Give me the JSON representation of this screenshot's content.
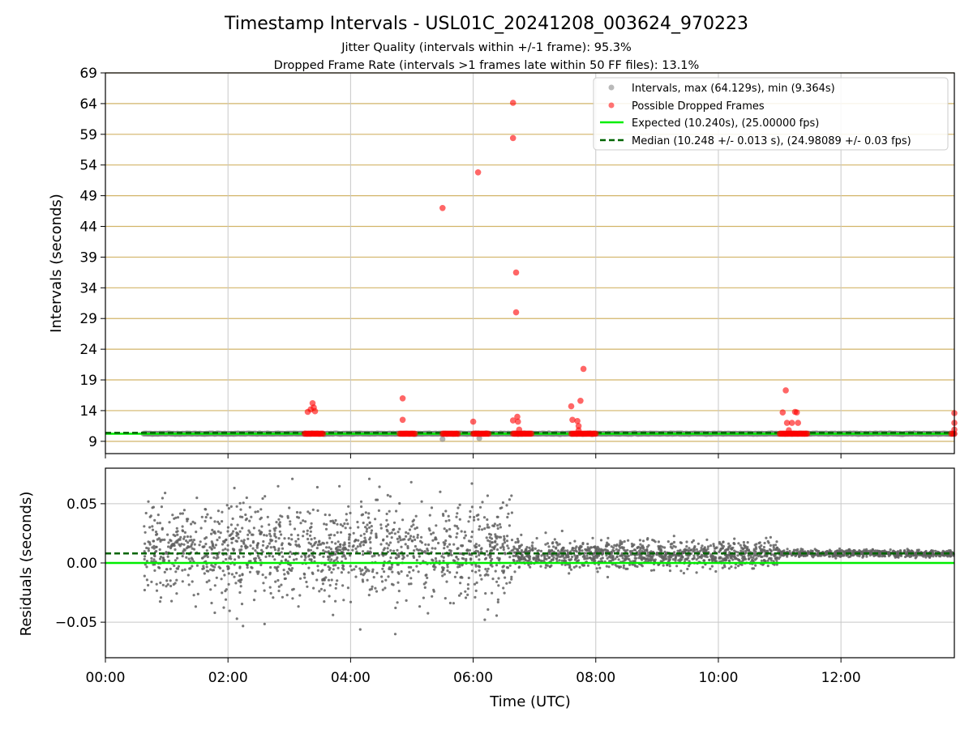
{
  "title": "Timestamp Intervals - USL01C_20241208_003624_970223",
  "subtitle_line1": "Jitter Quality (intervals within +/-1 frame): 95.3%",
  "subtitle_line2": "Dropped Frame Rate (intervals >1 frames late within 50 FF files): 13.1%",
  "colors": {
    "intervals": "#808080",
    "dropped": "#ff0000",
    "expected": "#00ee00",
    "median": "#006400",
    "hgrid_top": "#d2b468",
    "grid": "#c8c8c8"
  },
  "chart_data": [
    {
      "type": "scatter",
      "ylabel": "Intervals (seconds)",
      "ylim": [
        7,
        69
      ],
      "yticks": [
        9,
        14,
        19,
        24,
        29,
        34,
        39,
        44,
        49,
        54,
        59,
        64,
        69
      ],
      "xlim_hours": [
        0.0,
        13.85
      ],
      "xticks_hours": [
        0,
        2,
        4,
        6,
        8,
        10,
        12
      ],
      "grid": "on",
      "legend_placement": "top-right",
      "series": [
        {
          "name": "Intervals, max (64.129s), min (9.364s)",
          "kind": "scatter",
          "baseline_value": 10.24,
          "x_range_hours": [
            0.62,
            13.85
          ],
          "low_outliers": [
            [
              5.5,
              9.364
            ],
            [
              6.1,
              9.5
            ]
          ]
        },
        {
          "name": "Possible Dropped Frames",
          "kind": "scatter",
          "clusters_hours": [
            [
              3.25,
              3.55
            ],
            [
              4.8,
              5.05
            ],
            [
              5.5,
              5.75
            ],
            [
              6.0,
              6.25
            ],
            [
              6.65,
              6.95
            ],
            [
              7.6,
              8.0
            ],
            [
              11.0,
              11.45
            ],
            [
              13.8,
              13.85
            ]
          ],
          "cluster_value": 10.24,
          "points": [
            [
              3.3,
              13.8
            ],
            [
              3.35,
              14.2
            ],
            [
              3.38,
              15.2
            ],
            [
              3.4,
              14.5
            ],
            [
              3.42,
              13.9
            ],
            [
              4.85,
              16.0
            ],
            [
              4.85,
              12.5
            ],
            [
              5.5,
              47.0
            ],
            [
              6.0,
              12.2
            ],
            [
              6.08,
              52.8
            ],
            [
              6.65,
              64.129
            ],
            [
              6.65,
              58.4
            ],
            [
              6.65,
              12.4
            ],
            [
              6.7,
              36.5
            ],
            [
              6.7,
              30.0
            ],
            [
              6.72,
              13.0
            ],
            [
              6.73,
              12.2
            ],
            [
              6.75,
              10.9
            ],
            [
              7.6,
              14.7
            ],
            [
              7.62,
              12.5
            ],
            [
              7.7,
              12.3
            ],
            [
              7.72,
              11.5
            ],
            [
              7.75,
              15.6
            ],
            [
              7.8,
              20.8
            ],
            [
              7.72,
              10.8
            ],
            [
              11.05,
              13.7
            ],
            [
              11.1,
              17.3
            ],
            [
              11.12,
              12.0
            ],
            [
              11.2,
              12.0
            ],
            [
              11.25,
              13.8
            ],
            [
              11.28,
              13.7
            ],
            [
              11.3,
              12.0
            ],
            [
              11.15,
              10.8
            ],
            [
              13.85,
              13.6
            ],
            [
              13.85,
              12.0
            ],
            [
              13.85,
              10.9
            ]
          ]
        },
        {
          "name": "Expected (10.240s), (25.00000 fps)",
          "kind": "hline",
          "value": 10.24
        },
        {
          "name": "Median (10.248 +/- 0.013 s), (24.98089 +/- 0.03 fps)",
          "kind": "hline-dashed",
          "value": 10.248
        }
      ]
    },
    {
      "type": "scatter",
      "ylabel": "Residuals (seconds)",
      "xlabel": "Time (UTC)",
      "ylim": [
        -0.08,
        0.08
      ],
      "yticks": [
        0.05,
        0.0,
        -0.05
      ],
      "ytick_labels": [
        "0.05",
        "0.00",
        "−0.05"
      ],
      "xlim_hours": [
        0.0,
        13.85
      ],
      "xticks_hours": [
        0,
        2,
        4,
        6,
        8,
        10,
        12
      ],
      "xtick_labels": [
        "00:00",
        "02:00",
        "04:00",
        "06:00",
        "08:00",
        "10:00",
        "12:00"
      ],
      "grid": "on",
      "expected_residual": 0.0,
      "median_residual": 0.008,
      "residual_segments": [
        {
          "x_range_hours": [
            0.62,
            6.65
          ],
          "center": 0.01,
          "spread": 0.028,
          "max": 0.071,
          "min": -0.06
        },
        {
          "x_range_hours": [
            6.65,
            11.0
          ],
          "center": 0.007,
          "spread": 0.008,
          "max": 0.027,
          "min": -0.012
        },
        {
          "x_range_hours": [
            11.0,
            13.85
          ],
          "center": 0.008,
          "spread": 0.002,
          "max": 0.012,
          "min": 0.004
        }
      ]
    }
  ]
}
